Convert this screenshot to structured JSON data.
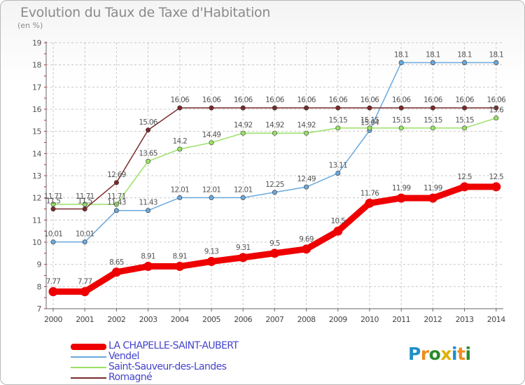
{
  "header": {
    "title": "Evolution du Taux de Taxe d'Habitation",
    "subtitle": "(en %)"
  },
  "logo": {
    "text": "Proxiti"
  },
  "chart_data": {
    "type": "line",
    "categories": [
      "2000",
      "2001",
      "2002",
      "2003",
      "2004",
      "2005",
      "2006",
      "2007",
      "2008",
      "2009",
      "2010",
      "2011",
      "2012",
      "2013",
      "2014"
    ],
    "ylim": [
      7,
      19
    ],
    "yticks": [
      "7",
      "8",
      "9",
      "10",
      "11",
      "12",
      "13",
      "14",
      "15",
      "16",
      "17",
      "18",
      "19"
    ],
    "grid": true,
    "legend_position": "bottom-left",
    "series": [
      {
        "name": "LA CHAPELLE-SAINT-AUBERT",
        "color": "#ee0000",
        "emphasis": true,
        "values": [
          7.77,
          7.77,
          8.65,
          8.91,
          8.91,
          9.13,
          9.31,
          9.5,
          9.69,
          10.5,
          11.76,
          11.99,
          11.99,
          12.5,
          12.5
        ],
        "labels": [
          "7.77",
          "7.77",
          "8.65",
          "8.91",
          "8.91",
          "9.13",
          "9.31",
          "9.5",
          "9.69",
          "10.5",
          "11.76",
          "11.99",
          "11.99",
          "12.5",
          "12.5"
        ]
      },
      {
        "name": "Vendel",
        "color": "#6aa9dd",
        "values": [
          10.01,
          10.01,
          11.43,
          11.43,
          12.01,
          12.01,
          12.01,
          12.25,
          12.49,
          13.11,
          15.04,
          18.1,
          18.1,
          18.1,
          18.1
        ],
        "labels": [
          "10.01",
          "10.01",
          "11.43",
          "11.43",
          "12.01",
          "12.01",
          "12.01",
          "12.25",
          "12.49",
          "13.11",
          "15.04",
          "18.1",
          "18.1",
          "18.1",
          "18.1"
        ]
      },
      {
        "name": "Saint-Sauveur-des-Landes",
        "color": "#99e066",
        "values": [
          11.71,
          11.71,
          11.71,
          13.65,
          14.2,
          14.49,
          14.92,
          14.92,
          14.92,
          15.15,
          15.15,
          15.15,
          15.15,
          15.15,
          15.6
        ],
        "labels": [
          "11.71",
          "11.71",
          "11.71",
          "13.65",
          "14.2",
          "14.49",
          "14.92",
          "14.92",
          "14.92",
          "15.15",
          "15.15",
          "15.15",
          "15.15",
          "15.15",
          "15.6"
        ]
      },
      {
        "name": "Romagné",
        "color": "#7a2a2a",
        "values": [
          11.5,
          11.5,
          12.69,
          15.06,
          16.06,
          16.06,
          16.06,
          16.06,
          16.06,
          16.06,
          16.06,
          16.06,
          16.06,
          16.06,
          16.06
        ],
        "labels": [
          "11.5",
          "11.5",
          "12.69",
          "15.06",
          "16.06",
          "16.06",
          "16.06",
          "16.06",
          "16.06",
          "16.06",
          "16.06",
          "16.06",
          "16.06",
          "16.06",
          "16.06"
        ]
      }
    ]
  }
}
